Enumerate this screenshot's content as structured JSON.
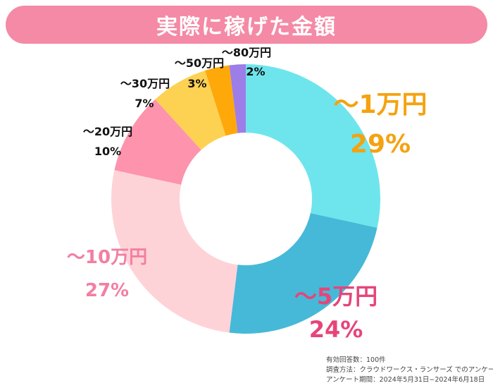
{
  "title": "実際に稼げた金額",
  "colors": {
    "banner": "#f48aa5"
  },
  "chart_data": {
    "type": "pie",
    "donut": true,
    "title": "実際に稼げた金額",
    "slices": [
      {
        "label": "〜1万円",
        "value": 29,
        "value_label": "29%",
        "color": "#6ee5ec",
        "text_color": "#f5a210"
      },
      {
        "label": "〜5万円",
        "value": 24,
        "value_label": "24%",
        "color": "#46b9d8",
        "text_color": "#e6457a"
      },
      {
        "label": "〜10万円",
        "value": 27,
        "value_label": "27%",
        "color": "#fed3d8",
        "text_color": "#f27fa2"
      },
      {
        "label": "〜20万円",
        "value": 10,
        "value_label": "10%",
        "color": "#fd93ad",
        "text_color": "#111111"
      },
      {
        "label": "〜30万円",
        "value": 7,
        "value_label": "7%",
        "color": "#fdd152",
        "text_color": "#111111"
      },
      {
        "label": "〜50万円",
        "value": 3,
        "value_label": "3%",
        "color": "#ffa80a",
        "text_color": "#111111"
      },
      {
        "label": "〜80万円",
        "value": 2,
        "value_label": "2%",
        "color": "#9d7de8",
        "text_color": "#111111"
      }
    ]
  },
  "notes": [
    "有効回答数：100件",
    "調査方法：クラウドワークス・ランサーズ でのアンケート",
    "アンケート期間：2024年5月31日−2024年6月18日"
  ]
}
